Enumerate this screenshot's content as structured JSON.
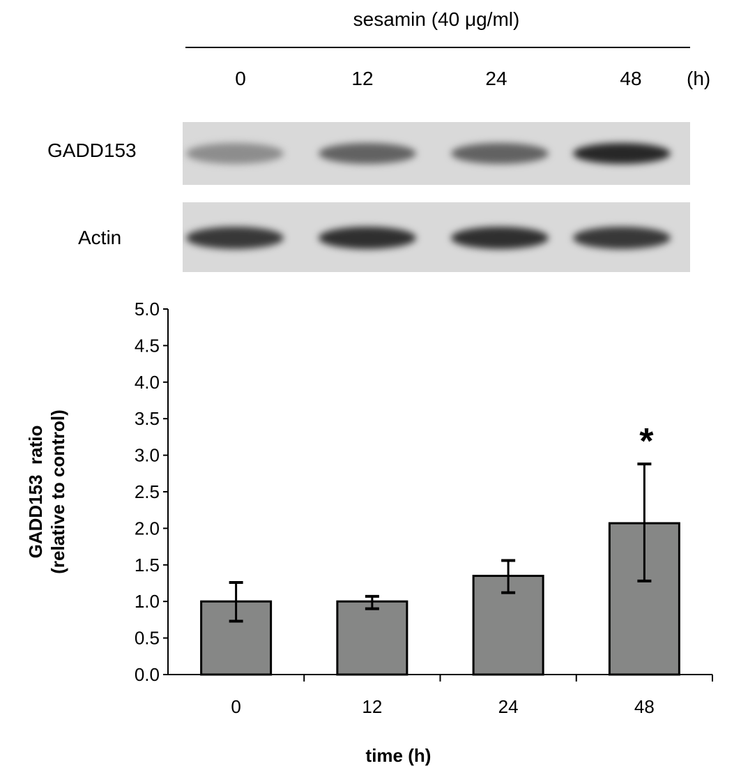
{
  "treatment_label": "sesamin (40 μg/ml)",
  "time_unit": "(h)",
  "lanes": [
    "0",
    "12",
    "24",
    "48"
  ],
  "blots": [
    {
      "label": "GADD153",
      "band_intensity": [
        0.35,
        0.6,
        0.6,
        0.95
      ]
    },
    {
      "label": "Actin",
      "band_intensity": [
        0.85,
        0.9,
        0.9,
        0.85
      ]
    }
  ],
  "chart_data": {
    "type": "bar",
    "categories": [
      "0",
      "12",
      "24",
      "48"
    ],
    "values": [
      1.0,
      1.0,
      1.35,
      2.07
    ],
    "error_upper": [
      1.26,
      1.07,
      1.56,
      2.88
    ],
    "error_lower": [
      0.73,
      0.9,
      1.12,
      1.28
    ],
    "annotations": [
      {
        "category": "48",
        "text": "*"
      }
    ],
    "xlabel": "time (h)",
    "ylabel": [
      "GADD153  ratio",
      "(relative to control)"
    ],
    "ylim": [
      0,
      5.0
    ],
    "yticks": [
      "0.0",
      "0.5",
      "1.0",
      "1.5",
      "2.0",
      "2.5",
      "3.0",
      "3.5",
      "4.0",
      "4.5",
      "5.0"
    ],
    "bar_color": "#868786",
    "grid": false
  }
}
